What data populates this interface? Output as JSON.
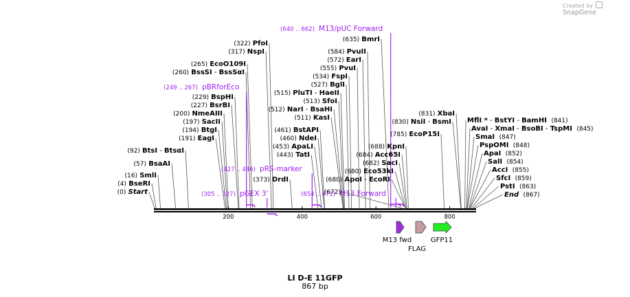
{
  "credit": {
    "created_by": "Created by",
    "brand": "SnapGene"
  },
  "construct": {
    "name": "LI D-E 11GFP",
    "length": "867 bp"
  },
  "colors": {
    "primer": "#a020f0",
    "m13fwd": "#9b30e0",
    "flag": "#c89aa4",
    "gfp11": "#22ee22"
  },
  "ruler": {
    "ticks": [
      {
        "pos": 200,
        "label": "200"
      },
      {
        "pos": 400,
        "label": "400"
      },
      {
        "pos": 600,
        "label": "600"
      },
      {
        "pos": 800,
        "label": "800"
      }
    ]
  },
  "enzymes_left": [
    {
      "pos": "(0)",
      "names": [
        {
          "t": "Start",
          "italic": true
        }
      ],
      "site": 0
    },
    {
      "pos": "(4)",
      "names": [
        {
          "t": "BseRI"
        }
      ],
      "site": 4
    },
    {
      "pos": "(16)",
      "names": [
        {
          "t": "SmlI"
        }
      ],
      "site": 16
    },
    {
      "pos": "(57)",
      "names": [
        {
          "t": "BsaAI"
        }
      ],
      "site": 57
    },
    {
      "pos": "(92)",
      "names": [
        {
          "t": "BtsI"
        },
        {
          "t": "BtsαI"
        }
      ],
      "site": 92
    },
    {
      "pos": "(191)",
      "names": [
        {
          "t": "EagI"
        }
      ],
      "site": 191
    },
    {
      "pos": "(194)",
      "names": [
        {
          "t": "BtgI"
        }
      ],
      "site": 194
    },
    {
      "pos": "(197)",
      "names": [
        {
          "t": "SacII"
        }
      ],
      "site": 197
    },
    {
      "pos": "(200)",
      "names": [
        {
          "t": "NmeAIII"
        }
      ],
      "site": 200
    },
    {
      "pos": "(227)",
      "names": [
        {
          "t": "BsrBI"
        }
      ],
      "site": 227
    },
    {
      "pos": "(229)",
      "names": [
        {
          "t": "BspHI"
        }
      ],
      "site": 229
    },
    {
      "pos": "(260)",
      "names": [
        {
          "t": "BssSI"
        },
        {
          "t": "BssSαI"
        }
      ],
      "site": 260
    },
    {
      "pos": "(265)",
      "names": [
        {
          "t": "EcoO109I"
        }
      ],
      "site": 265
    },
    {
      "pos": "(317)",
      "names": [
        {
          "t": "NspI"
        }
      ],
      "site": 317
    },
    {
      "pos": "(322)",
      "names": [
        {
          "t": "PfoI"
        }
      ],
      "site": 322
    },
    {
      "pos": "(373)",
      "names": [
        {
          "t": "DrdI"
        }
      ],
      "site": 373
    },
    {
      "pos": "(443)",
      "names": [
        {
          "t": "TatI"
        }
      ],
      "site": 443
    },
    {
      "pos": "(453)",
      "names": [
        {
          "t": "ApaLI"
        }
      ],
      "site": 453
    },
    {
      "pos": "(460)",
      "names": [
        {
          "t": "NdeI"
        }
      ],
      "site": 460
    },
    {
      "pos": "(461)",
      "names": [
        {
          "t": "BstAPI"
        }
      ],
      "site": 461
    },
    {
      "pos": "(511)",
      "names": [
        {
          "t": "KasI"
        }
      ],
      "site": 511
    },
    {
      "pos": "(512)",
      "names": [
        {
          "t": "NarI"
        },
        {
          "t": "BsaHI"
        }
      ],
      "site": 512
    },
    {
      "pos": "(513)",
      "names": [
        {
          "t": "SfoI"
        }
      ],
      "site": 513
    },
    {
      "pos": "(515)",
      "names": [
        {
          "t": "PluTI"
        },
        {
          "t": "HaeII"
        }
      ],
      "site": 515
    },
    {
      "pos": "(527)",
      "names": [
        {
          "t": "BglI"
        }
      ],
      "site": 527
    },
    {
      "pos": "(534)",
      "names": [
        {
          "t": "FspI"
        }
      ],
      "site": 534
    },
    {
      "pos": "(555)",
      "names": [
        {
          "t": "PvuI"
        }
      ],
      "site": 555
    },
    {
      "pos": "(572)",
      "names": [
        {
          "t": "EarI"
        }
      ],
      "site": 572
    },
    {
      "pos": "(584)",
      "names": [
        {
          "t": "PvuII"
        }
      ],
      "site": 584
    },
    {
      "pos": "(635)",
      "names": [
        {
          "t": "BmrI"
        }
      ],
      "site": 635
    },
    {
      "pos": "(672)",
      "names": [],
      "site": 672
    },
    {
      "pos": "(680)",
      "names": [
        {
          "t": "ApoI"
        },
        {
          "t": "EcoRI"
        }
      ],
      "site": 680
    },
    {
      "pos": "(682)",
      "names": [
        {
          "t": "SacI"
        }
      ],
      "site": 682
    },
    {
      "pos": "(680)",
      "names": [
        {
          "t": "Eco53kI"
        }
      ],
      "site": 680
    },
    {
      "pos": "(684)",
      "names": [
        {
          "t": "Acc65I"
        }
      ],
      "site": 684
    },
    {
      "pos": "(688)",
      "names": [
        {
          "t": "KpnI"
        }
      ],
      "site": 688
    },
    {
      "pos": "(785)",
      "names": [
        {
          "t": "EcoP15I"
        }
      ],
      "site": 785
    },
    {
      "pos": "(830)",
      "names": [
        {
          "t": "NsiI"
        },
        {
          "t": "BsmI"
        }
      ],
      "site": 830
    },
    {
      "pos": "(831)",
      "names": [
        {
          "t": "XbaI"
        }
      ],
      "site": 831
    }
  ],
  "enzymes_right": [
    {
      "names": [
        {
          "t": "MflI *"
        },
        {
          "t": "BstYI"
        },
        {
          "t": "BamHI"
        }
      ],
      "pos": "(841)",
      "site": 841
    },
    {
      "names": [
        {
          "t": "AvaI"
        },
        {
          "t": "XmaI"
        },
        {
          "t": "BsoBI"
        },
        {
          "t": "TspMI"
        }
      ],
      "pos": "(845)",
      "site": 845
    },
    {
      "names": [
        {
          "t": "SmaI"
        }
      ],
      "pos": "(847)",
      "site": 847
    },
    {
      "names": [
        {
          "t": "PspOMI"
        }
      ],
      "pos": "(848)",
      "site": 848
    },
    {
      "names": [
        {
          "t": "ApaI"
        }
      ],
      "pos": "(852)",
      "site": 852
    },
    {
      "names": [
        {
          "t": "SalI"
        }
      ],
      "pos": "(854)",
      "site": 854
    },
    {
      "names": [
        {
          "t": "AccI"
        }
      ],
      "pos": "(855)",
      "site": 855
    },
    {
      "names": [
        {
          "t": "SfcI"
        }
      ],
      "pos": "(859)",
      "site": 859
    },
    {
      "names": [
        {
          "t": "PstI"
        }
      ],
      "pos": "(863)",
      "site": 863
    },
    {
      "names": [
        {
          "t": "End",
          "italic": true
        }
      ],
      "pos": "(867)",
      "site": 867
    }
  ],
  "primers": [
    {
      "range": "(640 .. 662)",
      "name": "M13/pUC Forward",
      "start": 640,
      "end": 662
    },
    {
      "range": "(249 .. 267)",
      "name": "pBRforEco",
      "start": 249,
      "end": 267
    },
    {
      "range": "(427 .. 446)",
      "name": "pRS-marker",
      "start": 427,
      "end": 446
    },
    {
      "range": "(305 .. 327)",
      "name": "pGEX 3'",
      "start": 305,
      "end": 327
    },
    {
      "range": "(654 .. 671)",
      "name": "M13 Forward",
      "start": 654,
      "end": 671
    }
  ],
  "features": [
    {
      "name": "M13 fwd",
      "color": "#9b30e0"
    },
    {
      "name": "FLAG",
      "color": "#c89aa4"
    },
    {
      "name": "GFP11",
      "color": "#22ee22"
    }
  ]
}
